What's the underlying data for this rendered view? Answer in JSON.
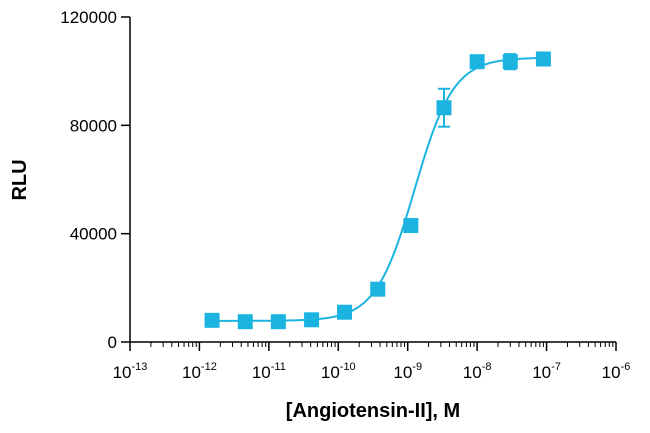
{
  "chart_data": {
    "type": "scatter",
    "title": "",
    "xlabel": "[Angiotensin-II], M",
    "ylabel": "RLU",
    "x_scale": "log",
    "xlim": [
      1e-13,
      1e-06
    ],
    "ylim": [
      0,
      120000
    ],
    "x_ticks": [
      {
        "value": 1e-13,
        "base": "10",
        "exp": "-13"
      },
      {
        "value": 1e-12,
        "base": "10",
        "exp": "-12"
      },
      {
        "value": 1e-11,
        "base": "10",
        "exp": "-11"
      },
      {
        "value": 1e-10,
        "base": "10",
        "exp": "-10"
      },
      {
        "value": 1e-09,
        "base": "10",
        "exp": "-9"
      },
      {
        "value": 1e-08,
        "base": "10",
        "exp": "-8"
      },
      {
        "value": 1e-07,
        "base": "10",
        "exp": "-7"
      },
      {
        "value": 1e-06,
        "base": "10",
        "exp": "-6"
      }
    ],
    "y_ticks": [
      {
        "value": 0,
        "label": "0"
      },
      {
        "value": 40000,
        "label": "40000"
      },
      {
        "value": 80000,
        "label": "80000"
      },
      {
        "value": 120000,
        "label": "120000"
      }
    ],
    "grid": false,
    "legend": "none",
    "color": "#1bb4e0",
    "series": [
      {
        "points": [
          {
            "x": 1.52e-12,
            "y": 8000,
            "err": 500
          },
          {
            "x": 4.57e-12,
            "y": 7500,
            "err": 500
          },
          {
            "x": 1.37e-11,
            "y": 7500,
            "err": 500
          },
          {
            "x": 4.12e-11,
            "y": 8200,
            "err": 500
          },
          {
            "x": 1.23e-10,
            "y": 11000,
            "err": 800
          },
          {
            "x": 3.7e-10,
            "y": 19500,
            "err": 1000
          },
          {
            "x": 1.11e-09,
            "y": 43000,
            "err": 1500
          },
          {
            "x": 3.33e-09,
            "y": 86500,
            "err": 7000
          },
          {
            "x": 1e-08,
            "y": 103500,
            "err": 1200
          },
          {
            "x": 3e-08,
            "y": 103500,
            "err": 2800
          },
          {
            "x": 9e-08,
            "y": 104500,
            "err": 1000
          }
        ]
      }
    ],
    "fit": {
      "model": "4PL",
      "bottom": 7800,
      "top": 105000,
      "log_ec50": -8.9,
      "hill": 1.55
    }
  }
}
